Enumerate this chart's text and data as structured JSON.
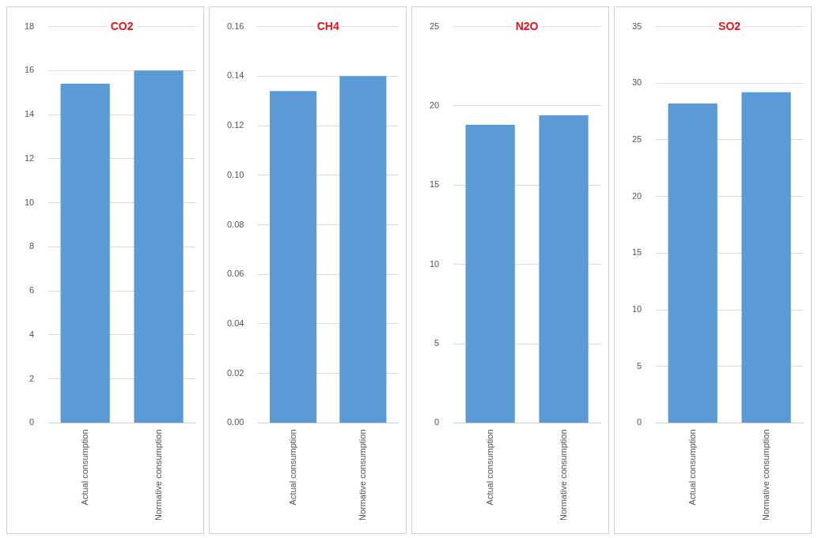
{
  "chart_data": [
    {
      "type": "bar",
      "title": "CO2",
      "categories": [
        "Actual consumption",
        "Normative consumption"
      ],
      "values": [
        15.4,
        16.0
      ],
      "color": "#5b9bd5",
      "ylim": [
        0,
        18
      ],
      "yticks": [
        0,
        2,
        4,
        6,
        8,
        10,
        12,
        14,
        16,
        18
      ],
      "grid": "y"
    },
    {
      "type": "bar",
      "title": "CH4",
      "categories": [
        "Actual consumption",
        "Normative consumption"
      ],
      "values": [
        0.134,
        0.14
      ],
      "color": "#5b9bd5",
      "ylim": [
        0,
        0.16
      ],
      "yticks": [
        {
          "value": 0,
          "label": "0.00"
        },
        {
          "value": 0.02,
          "label": "0.02"
        },
        {
          "value": 0.04,
          "label": "0.04"
        },
        {
          "value": 0.06,
          "label": "0.06"
        },
        {
          "value": 0.08,
          "label": "0.08"
        },
        {
          "value": 0.1,
          "label": "0.10"
        },
        {
          "value": 0.12,
          "label": "0.12"
        },
        {
          "value": 0.14,
          "label": "0.14"
        },
        {
          "value": 0.16,
          "label": "0.16"
        }
      ],
      "grid": "y"
    },
    {
      "type": "bar",
      "title": "N2O",
      "categories": [
        "Actual consumption",
        "Normative consumption"
      ],
      "values": [
        18.8,
        19.4
      ],
      "color": "#5b9bd5",
      "ylim": [
        0,
        25
      ],
      "yticks": [
        0,
        5,
        10,
        15,
        20,
        25
      ],
      "grid": "y"
    },
    {
      "type": "bar",
      "title": "SO2",
      "categories": [
        "Actual consumption",
        "Normative consumption"
      ],
      "values": [
        28.2,
        29.2
      ],
      "color": "#5b9bd5",
      "ylim": [
        0,
        35
      ],
      "yticks": [
        0,
        5,
        10,
        15,
        20,
        25,
        30,
        35
      ],
      "grid": "y"
    }
  ]
}
